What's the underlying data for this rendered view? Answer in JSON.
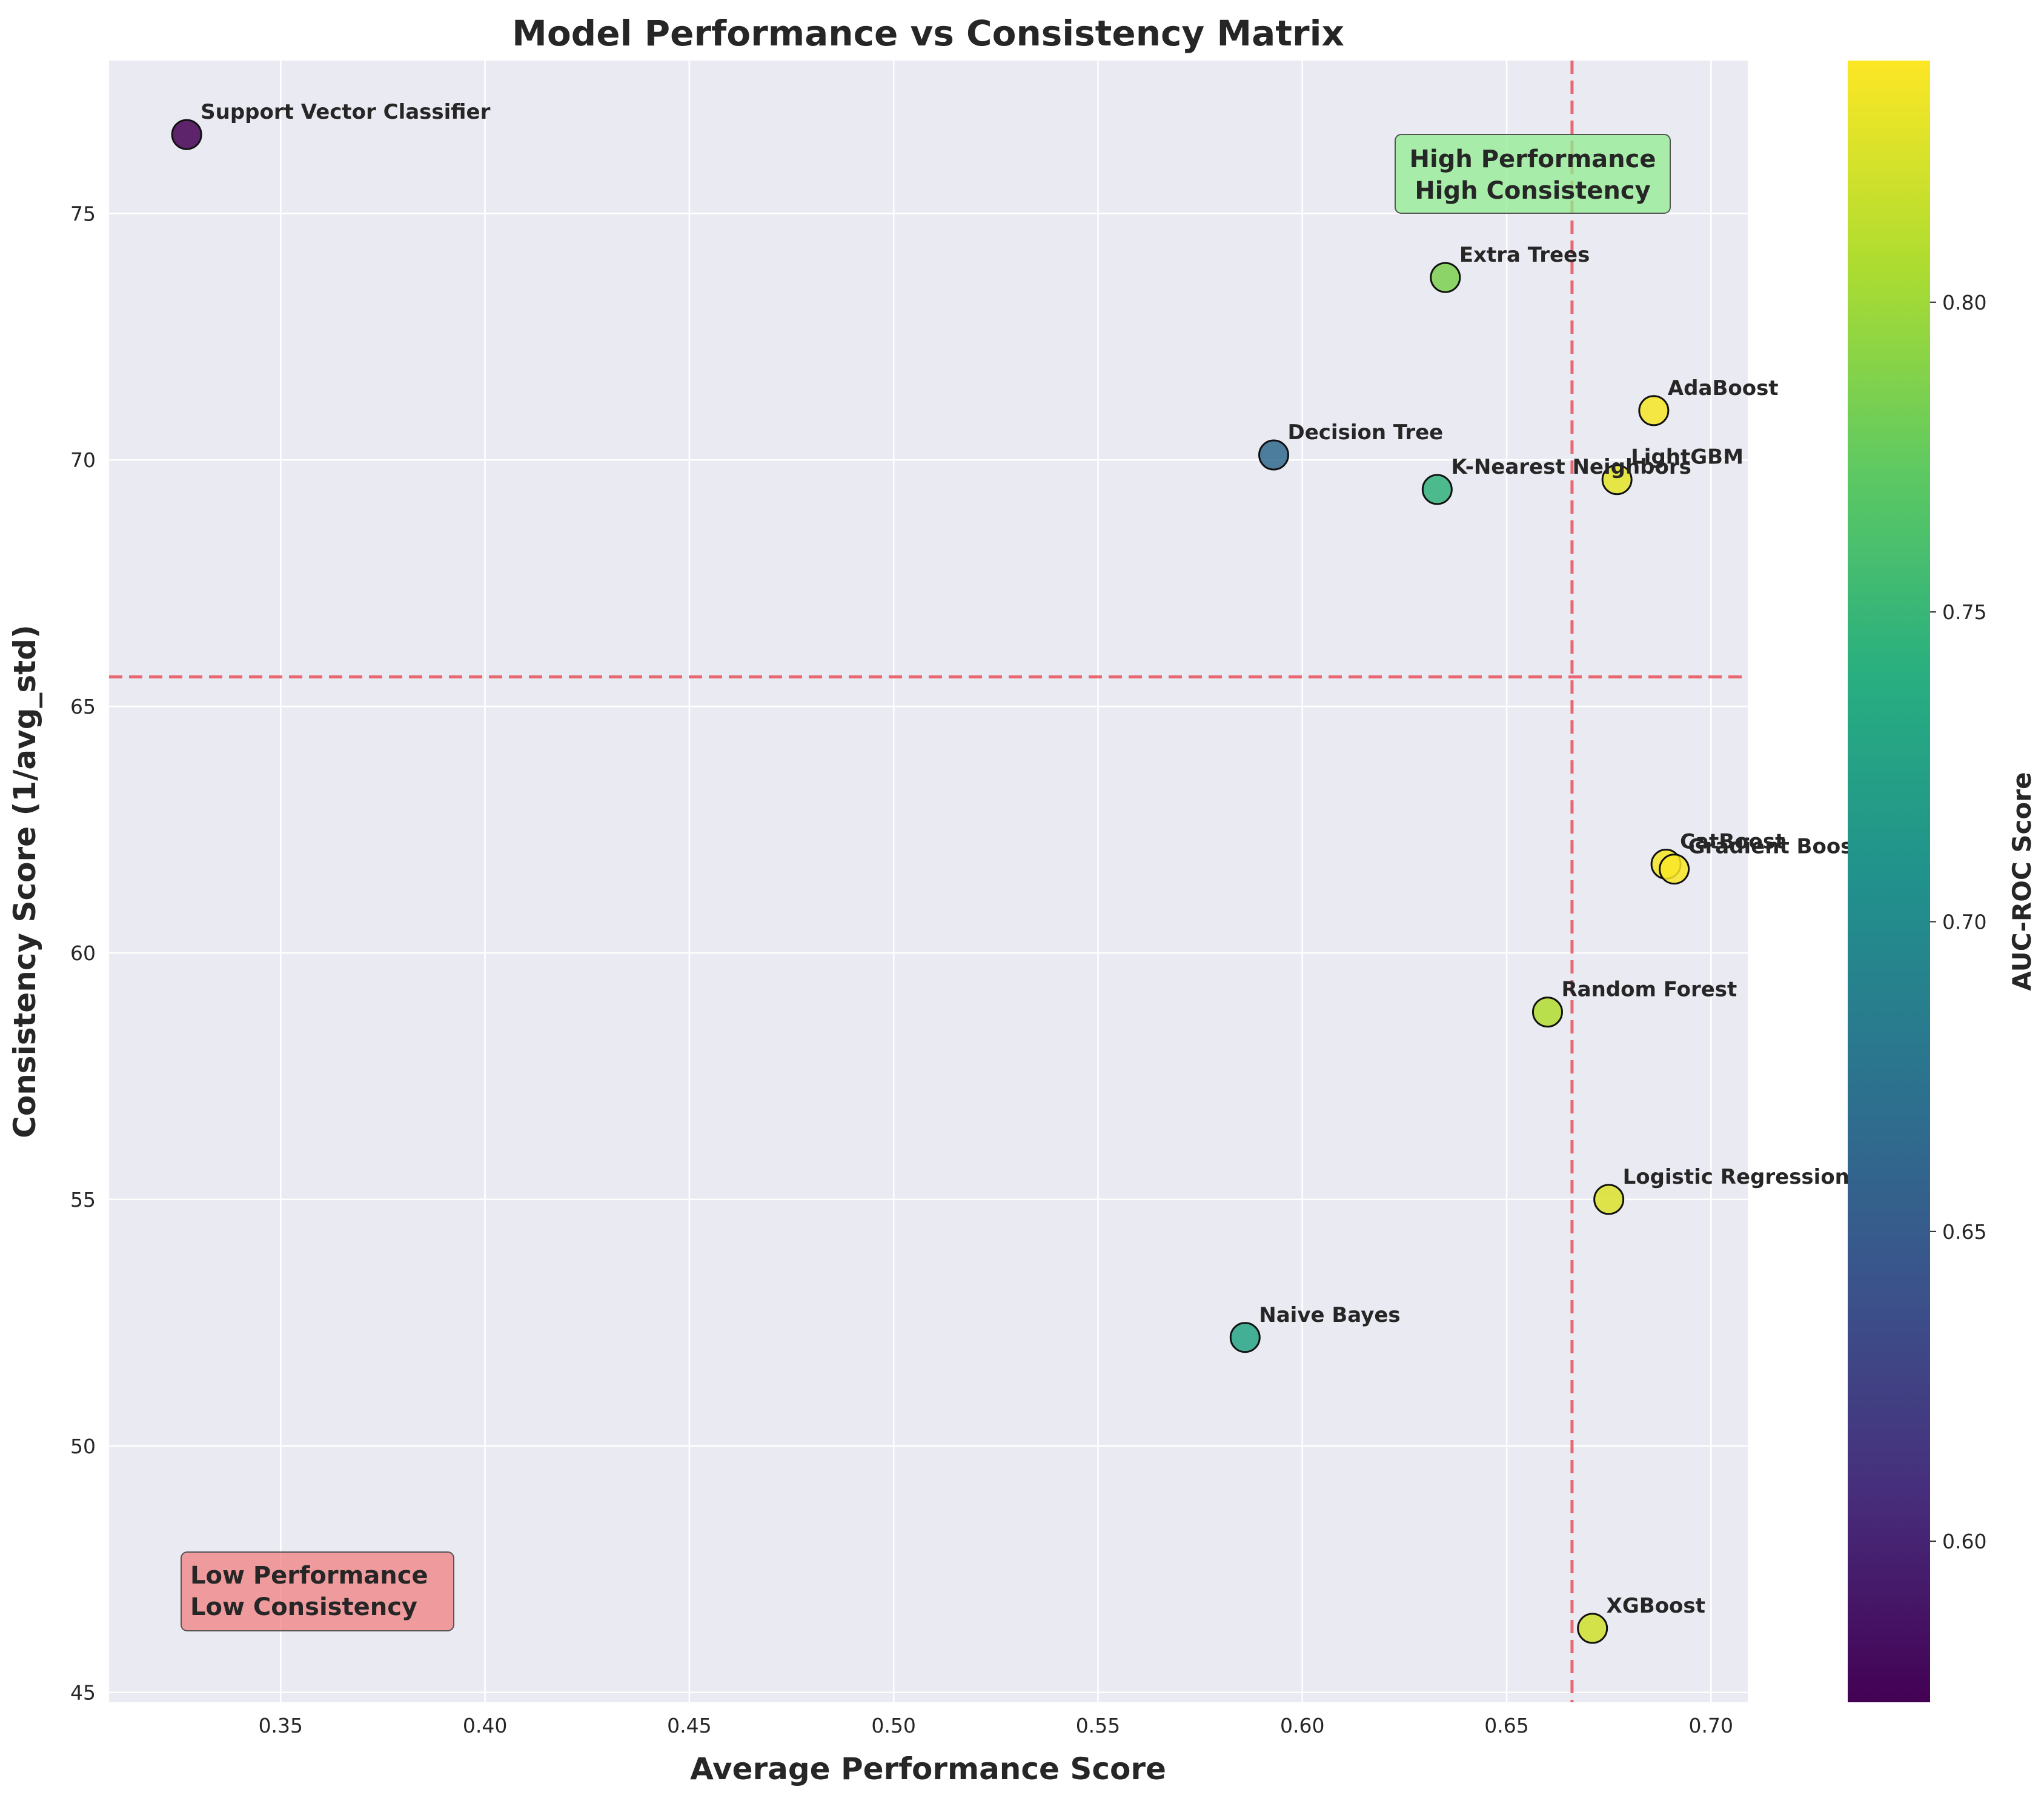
{
  "chart_data": {
    "type": "scatter",
    "title": "Model Performance vs Consistency Matrix",
    "xlabel": "Average Performance Score",
    "ylabel": "Consistency Score (1/avg_std)",
    "xlim": [
      0.308,
      0.709
    ],
    "ylim": [
      44.8,
      78.1
    ],
    "xticks": [
      0.35,
      0.4,
      0.45,
      0.5,
      0.55,
      0.6,
      0.65,
      0.7
    ],
    "xtick_labels": [
      "0.35",
      "0.40",
      "0.45",
      "0.50",
      "0.55",
      "0.60",
      "0.65",
      "0.70"
    ],
    "yticks": [
      45,
      50,
      55,
      60,
      65,
      70,
      75
    ],
    "ytick_labels": [
      "45",
      "50",
      "55",
      "60",
      "65",
      "70",
      "75"
    ],
    "grid": true,
    "threshold_x": 0.666,
    "threshold_y": 65.6,
    "threshold_color": "#e8505b",
    "colorbar": {
      "label": "AUC-ROC Score",
      "colormap": "viridis",
      "range": [
        0.574,
        0.839
      ],
      "ticks": [
        0.6,
        0.65,
        0.7,
        0.75,
        0.8
      ],
      "tick_labels": [
        "0.60",
        "0.65",
        "0.70",
        "0.75",
        "0.80"
      ]
    },
    "points": [
      {
        "label": "Support Vector Classifier",
        "x": 0.327,
        "y": 76.6,
        "auc": 0.574
      },
      {
        "label": "Extra Trees",
        "x": 0.635,
        "y": 73.7,
        "auc": 0.785
      },
      {
        "label": "AdaBoost",
        "x": 0.686,
        "y": 71.0,
        "auc": 0.836
      },
      {
        "label": "Decision Tree",
        "x": 0.593,
        "y": 70.1,
        "auc": 0.665
      },
      {
        "label": "LightGBM",
        "x": 0.677,
        "y": 69.6,
        "auc": 0.829
      },
      {
        "label": "K-Nearest Neighbors",
        "x": 0.633,
        "y": 69.4,
        "auc": 0.745
      },
      {
        "label": "CatBoost",
        "x": 0.689,
        "y": 61.8,
        "auc": 0.836
      },
      {
        "label": "Gradient Boosting",
        "x": 0.691,
        "y": 61.7,
        "auc": 0.837
      },
      {
        "label": "Random Forest",
        "x": 0.66,
        "y": 58.8,
        "auc": 0.808
      },
      {
        "label": "Logistic Regression",
        "x": 0.675,
        "y": 55.0,
        "auc": 0.825
      },
      {
        "label": "Naive Bayes",
        "x": 0.586,
        "y": 52.2,
        "auc": 0.728
      },
      {
        "label": "XGBoost",
        "x": 0.671,
        "y": 46.3,
        "auc": 0.82
      }
    ],
    "annotations": [
      {
        "line1": "High Performance",
        "line2": "High Consistency",
        "color": "#90ee90"
      },
      {
        "line1": "Low Performance",
        "line2": "Low Consistency",
        "color": "#f08080"
      }
    ]
  }
}
